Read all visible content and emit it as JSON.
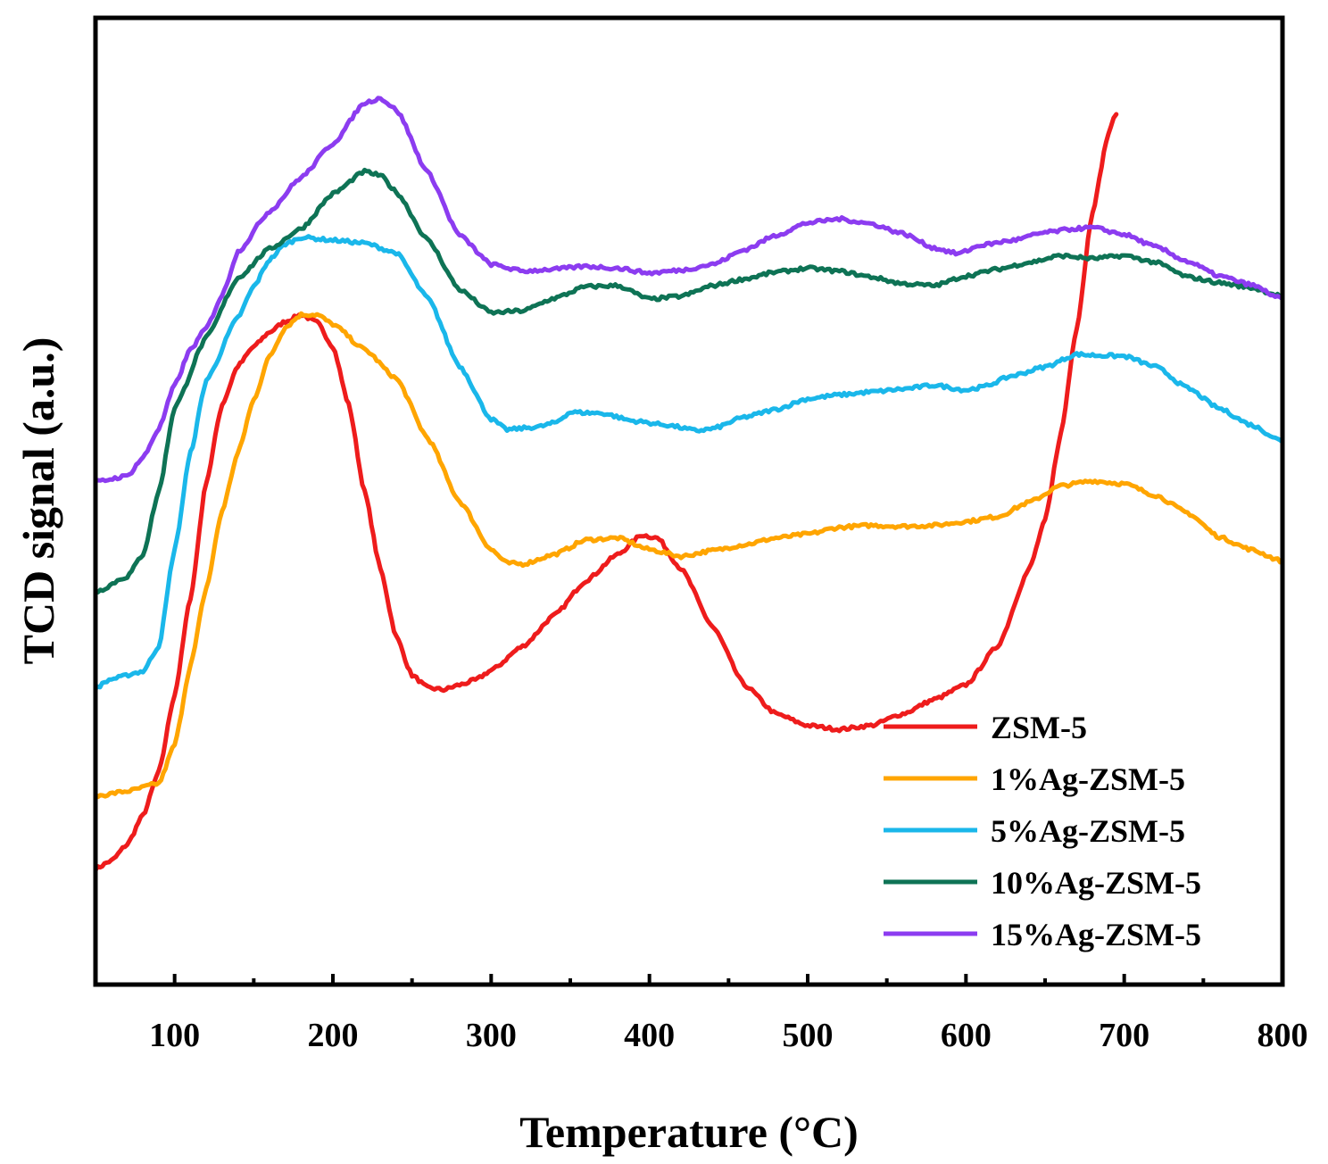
{
  "chart_data": {
    "type": "line",
    "title": "",
    "xlabel": "Temperature (°C)",
    "ylabel": "TCD signal (a.u.)",
    "xlim": [
      50,
      800
    ],
    "ylim": [
      0,
      100
    ],
    "x_ticks": [
      100,
      200,
      300,
      400,
      500,
      600,
      700,
      800
    ],
    "x_tick_labels": [
      "100",
      "200",
      "300",
      "400",
      "500",
      "600",
      "700",
      "800"
    ],
    "y_ticks_shown": false,
    "legend_position": "bottom-right",
    "series": [
      {
        "name": "ZSM-5",
        "color": "#ee1c1c",
        "points": [
          [
            50,
            12
          ],
          [
            60,
            12.8
          ],
          [
            70,
            14.5
          ],
          [
            80,
            17.5
          ],
          [
            90,
            22
          ],
          [
            100,
            30
          ],
          [
            110,
            40
          ],
          [
            120,
            52
          ],
          [
            130,
            60
          ],
          [
            140,
            64
          ],
          [
            150,
            66
          ],
          [
            160,
            67.5
          ],
          [
            170,
            68.6
          ],
          [
            180,
            69.3
          ],
          [
            190,
            68.5
          ],
          [
            200,
            66
          ],
          [
            210,
            60
          ],
          [
            220,
            51
          ],
          [
            230,
            43
          ],
          [
            240,
            36
          ],
          [
            250,
            32
          ],
          [
            260,
            30.7
          ],
          [
            270,
            30.5
          ],
          [
            280,
            31
          ],
          [
            290,
            31.5
          ],
          [
            300,
            32.5
          ],
          [
            320,
            35
          ],
          [
            340,
            38.2
          ],
          [
            360,
            41.8
          ],
          [
            380,
            44.5
          ],
          [
            395,
            46.5
          ],
          [
            405,
            46.2
          ],
          [
            420,
            43
          ],
          [
            440,
            37
          ],
          [
            460,
            31
          ],
          [
            480,
            28
          ],
          [
            500,
            26.8
          ],
          [
            520,
            26.4
          ],
          [
            540,
            26.8
          ],
          [
            560,
            28
          ],
          [
            580,
            29.5
          ],
          [
            600,
            31
          ],
          [
            620,
            35
          ],
          [
            640,
            43
          ],
          [
            650,
            48
          ],
          [
            660,
            57
          ],
          [
            670,
            68
          ],
          [
            680,
            80
          ],
          [
            690,
            88
          ],
          [
            695,
            90.2
          ]
        ]
      },
      {
        "name": "1%Ag-ZSM-5",
        "color": "#ffa500",
        "points": [
          [
            50,
            19.5
          ],
          [
            70,
            20
          ],
          [
            90,
            20.8
          ],
          [
            100,
            24.8
          ],
          [
            110,
            33
          ],
          [
            120,
            41
          ],
          [
            130,
            49
          ],
          [
            140,
            55
          ],
          [
            150,
            60.5
          ],
          [
            160,
            65
          ],
          [
            170,
            68
          ],
          [
            180,
            69.3
          ],
          [
            190,
            69.3
          ],
          [
            200,
            68.3
          ],
          [
            220,
            65.7
          ],
          [
            240,
            62.7
          ],
          [
            260,
            56.5
          ],
          [
            280,
            50
          ],
          [
            300,
            45
          ],
          [
            310,
            43.6
          ],
          [
            320,
            43.5
          ],
          [
            340,
            44.5
          ],
          [
            360,
            46
          ],
          [
            380,
            46.2
          ],
          [
            400,
            45
          ],
          [
            420,
            44.3
          ],
          [
            440,
            44.9
          ],
          [
            460,
            45.5
          ],
          [
            480,
            46.2
          ],
          [
            500,
            46.6
          ],
          [
            520,
            47.3
          ],
          [
            540,
            47.5
          ],
          [
            560,
            47.4
          ],
          [
            580,
            47.5
          ],
          [
            600,
            47.9
          ],
          [
            620,
            48.4
          ],
          [
            640,
            49.9
          ],
          [
            660,
            51.6
          ],
          [
            680,
            52.1
          ],
          [
            700,
            51.8
          ],
          [
            720,
            50.6
          ],
          [
            740,
            48.8
          ],
          [
            760,
            46.3
          ],
          [
            780,
            45
          ],
          [
            800,
            43.8
          ]
        ]
      },
      {
        "name": "5%Ag-ZSM-5",
        "color": "#1ab7ea",
        "points": [
          [
            50,
            30.7
          ],
          [
            60,
            31.6
          ],
          [
            80,
            32.4
          ],
          [
            90,
            35
          ],
          [
            100,
            45
          ],
          [
            110,
            55
          ],
          [
            120,
            62.5
          ],
          [
            140,
            69
          ],
          [
            150,
            72.2
          ],
          [
            160,
            75
          ],
          [
            170,
            76.6
          ],
          [
            180,
            77.3
          ],
          [
            200,
            77
          ],
          [
            220,
            76.7
          ],
          [
            240,
            75.7
          ],
          [
            260,
            71
          ],
          [
            280,
            64
          ],
          [
            300,
            58.5
          ],
          [
            310,
            57.4
          ],
          [
            330,
            57.7
          ],
          [
            340,
            58.1
          ],
          [
            350,
            59.2
          ],
          [
            370,
            59.1
          ],
          [
            390,
            58.3
          ],
          [
            410,
            57.9
          ],
          [
            430,
            57.3
          ],
          [
            440,
            57.5
          ],
          [
            460,
            58.7
          ],
          [
            480,
            59.5
          ],
          [
            500,
            60.6
          ],
          [
            520,
            61
          ],
          [
            540,
            61.3
          ],
          [
            560,
            61.6
          ],
          [
            580,
            62
          ],
          [
            600,
            61.5
          ],
          [
            610,
            61.8
          ],
          [
            630,
            63
          ],
          [
            650,
            63.9
          ],
          [
            670,
            65.2
          ],
          [
            680,
            65.1
          ],
          [
            700,
            65
          ],
          [
            720,
            63.9
          ],
          [
            740,
            61.7
          ],
          [
            760,
            59.6
          ],
          [
            780,
            57.9
          ],
          [
            800,
            56.2
          ]
        ]
      },
      {
        "name": "10%Ag-ZSM-5",
        "color": "#0e7355",
        "points": [
          [
            50,
            40.6
          ],
          [
            70,
            42.2
          ],
          [
            80,
            44.5
          ],
          [
            90,
            51
          ],
          [
            100,
            59.7
          ],
          [
            120,
            66.9
          ],
          [
            140,
            73.1
          ],
          [
            160,
            76.1
          ],
          [
            180,
            78.2
          ],
          [
            200,
            81.8
          ],
          [
            220,
            84.1
          ],
          [
            230,
            83.7
          ],
          [
            240,
            82
          ],
          [
            260,
            77
          ],
          [
            280,
            71.9
          ],
          [
            300,
            69.5
          ],
          [
            320,
            69.7
          ],
          [
            340,
            71
          ],
          [
            360,
            72.2
          ],
          [
            380,
            72.3
          ],
          [
            400,
            70.9
          ],
          [
            420,
            71.2
          ],
          [
            440,
            72.3
          ],
          [
            460,
            73
          ],
          [
            480,
            73.7
          ],
          [
            500,
            74.1
          ],
          [
            520,
            73.8
          ],
          [
            540,
            73.2
          ],
          [
            560,
            72.5
          ],
          [
            580,
            72.3
          ],
          [
            600,
            73.3
          ],
          [
            620,
            74
          ],
          [
            640,
            74.7
          ],
          [
            660,
            75.4
          ],
          [
            680,
            75.1
          ],
          [
            700,
            75.4
          ],
          [
            720,
            74.7
          ],
          [
            740,
            73.2
          ],
          [
            760,
            72.6
          ],
          [
            780,
            72.1
          ],
          [
            800,
            71.2
          ]
        ]
      },
      {
        "name": "15%Ag-ZSM-5",
        "color": "#8c3cf0",
        "points": [
          [
            50,
            52
          ],
          [
            70,
            52.6
          ],
          [
            80,
            54.5
          ],
          [
            90,
            57.5
          ],
          [
            100,
            62
          ],
          [
            110,
            65.7
          ],
          [
            120,
            67.9
          ],
          [
            130,
            71.3
          ],
          [
            140,
            75.8
          ],
          [
            160,
            80
          ],
          [
            180,
            83.5
          ],
          [
            200,
            87
          ],
          [
            220,
            91.2
          ],
          [
            230,
            91.7
          ],
          [
            240,
            90.5
          ],
          [
            260,
            84
          ],
          [
            280,
            77.5
          ],
          [
            300,
            74.5
          ],
          [
            320,
            73.8
          ],
          [
            340,
            74
          ],
          [
            360,
            74.3
          ],
          [
            380,
            74.1
          ],
          [
            400,
            73.6
          ],
          [
            420,
            73.9
          ],
          [
            440,
            74.5
          ],
          [
            460,
            76
          ],
          [
            480,
            77.5
          ],
          [
            500,
            78.8
          ],
          [
            520,
            79.2
          ],
          [
            540,
            78.7
          ],
          [
            560,
            77.7
          ],
          [
            580,
            76.2
          ],
          [
            595,
            75.6
          ],
          [
            610,
            76.5
          ],
          [
            630,
            77
          ],
          [
            650,
            77.8
          ],
          [
            670,
            78.2
          ],
          [
            680,
            78.3
          ],
          [
            700,
            77.6
          ],
          [
            720,
            76.3
          ],
          [
            740,
            74.8
          ],
          [
            760,
            73.3
          ],
          [
            780,
            72.4
          ],
          [
            800,
            70.9
          ]
        ]
      }
    ]
  }
}
